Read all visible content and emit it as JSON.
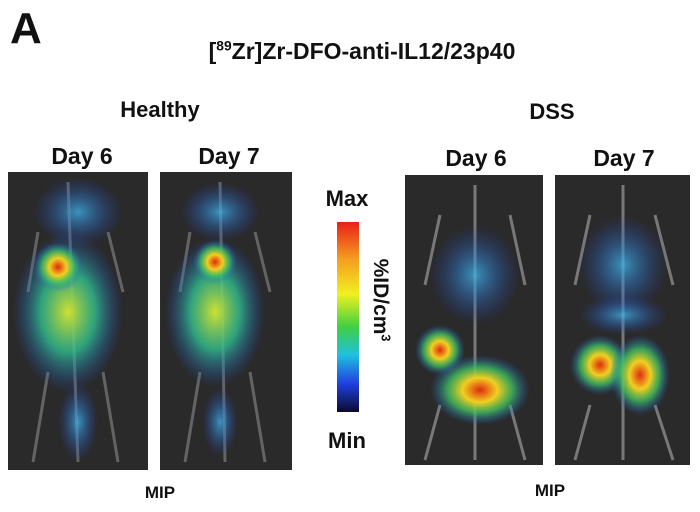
{
  "panel_label": "A",
  "title": {
    "prefix": "[",
    "superscript": "89",
    "text": "Zr]Zr-DFO-anti-IL12/23p40"
  },
  "groups": [
    {
      "label": "Healthy",
      "images": [
        {
          "label": "Day 6"
        },
        {
          "label": "Day 7"
        }
      ],
      "footer": "MIP"
    },
    {
      "label": "DSS",
      "images": [
        {
          "label": "Day 6"
        },
        {
          "label": "Day 7"
        }
      ],
      "footer": "MIP"
    }
  ],
  "colorbar": {
    "max": "Max",
    "min": "Min",
    "unit": "%ID/cm",
    "unit_superscript": "3"
  }
}
